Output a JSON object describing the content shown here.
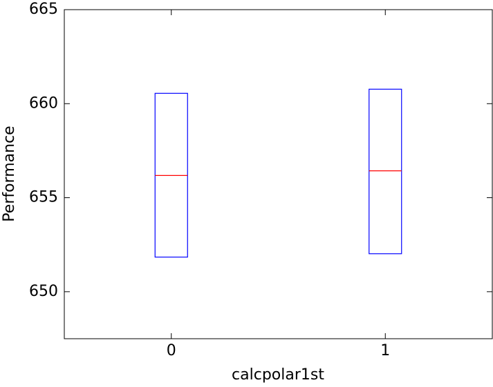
{
  "chart_data": {
    "type": "box",
    "x_label": "calcpolar1st",
    "y_label": "Performance",
    "categories": [
      "0",
      "1"
    ],
    "boxes": [
      {
        "q1": 651.84,
        "median": 656.18,
        "q3": 660.55
      },
      {
        "q1": 652.02,
        "median": 656.43,
        "q3": 660.77
      }
    ],
    "box_color": "#0000ff",
    "median_color": "#ff0000",
    "ylim": [
      647.5,
      665
    ],
    "yticks": [
      650,
      655,
      660,
      665
    ]
  }
}
